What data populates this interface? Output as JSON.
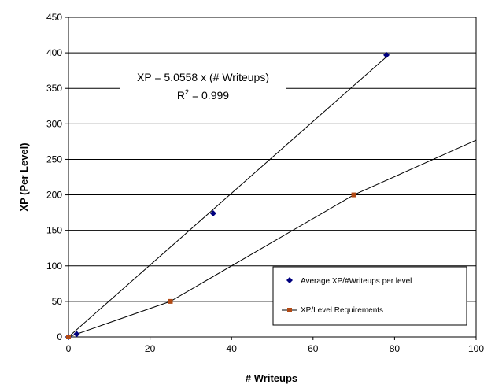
{
  "chart_data": {
    "type": "scatter",
    "title": "",
    "xlabel": "# Writeups",
    "ylabel": "XP (Per Level)",
    "xlim": [
      0,
      100
    ],
    "ylim": [
      0,
      450
    ],
    "xticks": [
      "0",
      "20",
      "40",
      "60",
      "80",
      "100"
    ],
    "yticks": [
      "0",
      "50",
      "100",
      "150",
      "200",
      "250",
      "300",
      "350",
      "400",
      "450"
    ],
    "grid": "horizontal",
    "legend_position": "bottom-right",
    "series": [
      {
        "name": "Average XP/#Writeups per level",
        "marker": "diamond",
        "color": "#00007f",
        "x": [
          0,
          2,
          35.5,
          78
        ],
        "y": [
          0,
          4,
          174,
          397
        ],
        "trendline": {
          "x": [
            0,
            78
          ],
          "y": [
            0,
            394.4
          ]
        }
      },
      {
        "name": "XP/Level Requirements",
        "marker": "square",
        "color": "#b24a15",
        "x": [
          0,
          25,
          70
        ],
        "y": [
          0,
          50,
          200
        ],
        "trendline": {
          "x": [
            0,
            25,
            70,
            100
          ],
          "y": [
            0,
            50,
            200,
            277
          ]
        }
      }
    ],
    "annotation": {
      "equation": "XP = 5.0558 x (# Writeups)",
      "r_squared_label": "R",
      "r_squared_sup": "2",
      "r_squared_value": " = 0.999"
    }
  }
}
